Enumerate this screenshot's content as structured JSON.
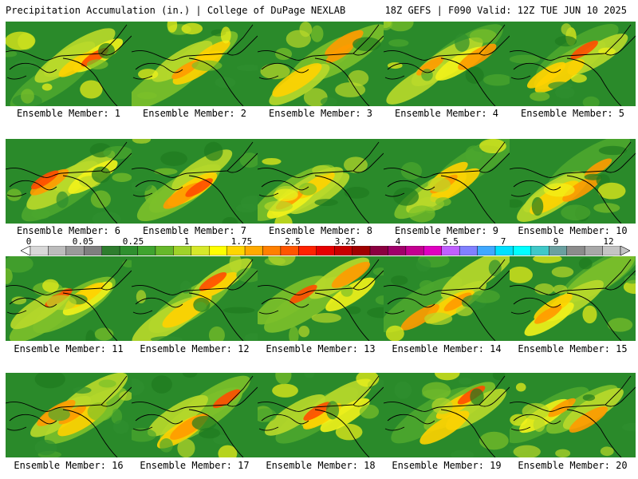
{
  "header": {
    "left": "Precipitation Accumulation (in.) | College of DuPage NEXLAB",
    "right": "18Z GEFS | F090 Valid: 12Z TUE JUN 10 2025"
  },
  "colorbar": {
    "labels": [
      "0",
      "0.05",
      "0.25",
      "1",
      "1.75",
      "2.5",
      "3.25",
      "4",
      "5.5",
      "7",
      "9",
      "12"
    ],
    "colors": [
      "#d8d8d8",
      "#bcbcbc",
      "#9a9a9a",
      "#7f7f7f",
      "#2e7d2e",
      "#2f8f2f",
      "#3fa42f",
      "#66b82b",
      "#9fd22a",
      "#d6e82a",
      "#ffff00",
      "#ffd500",
      "#ffaa00",
      "#ff8000",
      "#ff5500",
      "#ff2200",
      "#e60000",
      "#c80000",
      "#a00000",
      "#8b0040",
      "#a0006a",
      "#c40090",
      "#e000c0",
      "#c060ff",
      "#8080ff",
      "#40a8ff",
      "#00e0ff",
      "#00ffff",
      "#40c8c8",
      "#6aa0a0",
      "#8c8c8c",
      "#a8a8a8",
      "#c4c4c4"
    ]
  },
  "panels": [
    {
      "label": "Ensemble Member: 1"
    },
    {
      "label": "Ensemble Member: 2"
    },
    {
      "label": "Ensemble Member: 3"
    },
    {
      "label": "Ensemble Member: 4"
    },
    {
      "label": "Ensemble Member: 5"
    },
    {
      "label": "Ensemble Member: 6"
    },
    {
      "label": "Ensemble Member: 7"
    },
    {
      "label": "Ensemble Member: 8"
    },
    {
      "label": "Ensemble Member: 9"
    },
    {
      "label": "Ensemble Member: 10"
    },
    {
      "label": "Ensemble Member: 11"
    },
    {
      "label": "Ensemble Member: 12"
    },
    {
      "label": "Ensemble Member: 13"
    },
    {
      "label": "Ensemble Member: 14"
    },
    {
      "label": "Ensemble Member: 15"
    },
    {
      "label": "Ensemble Member: 16"
    },
    {
      "label": "Ensemble Member: 17"
    },
    {
      "label": "Ensemble Member: 18"
    },
    {
      "label": "Ensemble Member: 19"
    },
    {
      "label": "Ensemble Member: 20"
    }
  ]
}
